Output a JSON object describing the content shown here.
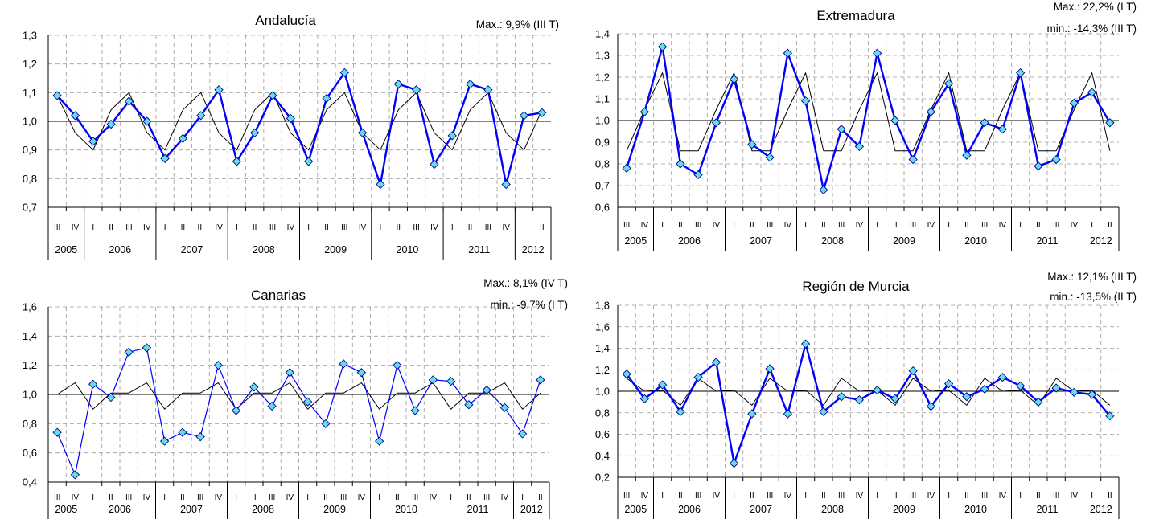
{
  "chart_data": [
    {
      "type": "line",
      "title": "Andalucía",
      "max_note": "Max.: 9,9% (III T)",
      "min_note": "",
      "ylim": [
        0.7,
        1.3
      ],
      "y_ticks": [
        "0,7",
        "0,8",
        "0,9",
        "1,0",
        "1,1",
        "1,2",
        "1,3"
      ],
      "reference_line": 1.0,
      "quarter_labels": [
        "III",
        "IV",
        "I",
        "II",
        "III",
        "IV",
        "I",
        "II",
        "III",
        "IV",
        "I",
        "II",
        "III",
        "IV",
        "I",
        "II",
        "III",
        "IV",
        "I",
        "II",
        "III",
        "IV",
        "I",
        "II",
        "III",
        "IV",
        "I",
        "II"
      ],
      "years": [
        {
          "label": "2005",
          "quarters": 2
        },
        {
          "label": "2006",
          "quarters": 4
        },
        {
          "label": "2007",
          "quarters": 4
        },
        {
          "label": "2008",
          "quarters": 4
        },
        {
          "label": "2009",
          "quarters": 4
        },
        {
          "label": "2010",
          "quarters": 4
        },
        {
          "label": "2011",
          "quarters": 4
        },
        {
          "label": "2012",
          "quarters": 2
        }
      ],
      "series": [
        {
          "color": "#0000ff",
          "marker": "diamond",
          "marker_fill": "#66ddee",
          "values": [
            1.09,
            1.02,
            0.93,
            0.99,
            1.07,
            1.0,
            0.87,
            0.94,
            1.02,
            1.11,
            0.86,
            0.96,
            1.09,
            1.01,
            0.86,
            1.08,
            1.17,
            0.96,
            0.78,
            1.13,
            1.11,
            0.85,
            0.95,
            1.13,
            1.11,
            0.78,
            1.02,
            1.03
          ]
        },
        {
          "color": "#000000",
          "marker": "none",
          "values": [
            1.09,
            0.96,
            0.9,
            1.04,
            1.1,
            0.96,
            0.9,
            1.04,
            1.1,
            0.96,
            0.9,
            1.04,
            1.1,
            0.96,
            0.9,
            1.04,
            1.1,
            0.96,
            0.9,
            1.04,
            1.1,
            0.96,
            0.9,
            1.04,
            1.1,
            0.96,
            0.9,
            1.04
          ]
        }
      ]
    },
    {
      "type": "line",
      "title": "Extremadura",
      "max_note": "Max.: 22,2% (I T)",
      "min_note": "min.: -14,3% (III T)",
      "ylim": [
        0.6,
        1.4
      ],
      "y_ticks": [
        "0,6",
        "0,7",
        "0,8",
        "0,9",
        "1,0",
        "1,1",
        "1,2",
        "1,3",
        "1,4"
      ],
      "reference_line": 1.0,
      "quarter_labels": [
        "III",
        "IV",
        "I",
        "II",
        "III",
        "IV",
        "I",
        "II",
        "III",
        "IV",
        "I",
        "II",
        "III",
        "IV",
        "I",
        "II",
        "III",
        "IV",
        "I",
        "II",
        "III",
        "IV",
        "I",
        "II",
        "III",
        "IV",
        "I",
        "II"
      ],
      "years": [
        {
          "label": "2005",
          "quarters": 2
        },
        {
          "label": "2006",
          "quarters": 4
        },
        {
          "label": "2007",
          "quarters": 4
        },
        {
          "label": "2008",
          "quarters": 4
        },
        {
          "label": "2009",
          "quarters": 4
        },
        {
          "label": "2010",
          "quarters": 4
        },
        {
          "label": "2011",
          "quarters": 4
        },
        {
          "label": "2012",
          "quarters": 2
        }
      ],
      "series": [
        {
          "color": "#0000ff",
          "marker": "diamond",
          "marker_fill": "#66ddee",
          "values": [
            0.78,
            1.04,
            1.34,
            0.8,
            0.75,
            0.99,
            1.19,
            0.89,
            0.83,
            1.31,
            1.09,
            0.68,
            0.96,
            0.88,
            1.31,
            1.0,
            0.82,
            1.04,
            1.17,
            0.84,
            0.99,
            0.96,
            1.22,
            0.79,
            0.82,
            1.08,
            1.13,
            0.99
          ]
        },
        {
          "color": "#000000",
          "marker": "none",
          "values": [
            0.86,
            1.05,
            1.22,
            0.86,
            0.86,
            1.05,
            1.22,
            0.86,
            0.86,
            1.05,
            1.22,
            0.86,
            0.86,
            1.05,
            1.22,
            0.86,
            0.86,
            1.05,
            1.22,
            0.86,
            0.86,
            1.05,
            1.22,
            0.86,
            0.86,
            1.05,
            1.22,
            0.86
          ]
        }
      ]
    },
    {
      "type": "line",
      "title": "Canarias",
      "max_note": "Max.: 8,1% (IV T)",
      "min_note": "min.: -9,7% (I T)",
      "ylim": [
        0.4,
        1.6
      ],
      "y_ticks": [
        "0,4",
        "0,6",
        "0,8",
        "1,0",
        "1,2",
        "1,4",
        "1,6"
      ],
      "reference_line": 1.0,
      "quarter_labels": [
        "III",
        "IV",
        "I",
        "II",
        "III",
        "IV",
        "I",
        "II",
        "III",
        "IV",
        "I",
        "II",
        "III",
        "IV",
        "I",
        "II",
        "III",
        "IV",
        "I",
        "II",
        "III",
        "IV",
        "I",
        "II",
        "III",
        "IV",
        "I",
        "II"
      ],
      "years": [
        {
          "label": "2005",
          "quarters": 2
        },
        {
          "label": "2006",
          "quarters": 4
        },
        {
          "label": "2007",
          "quarters": 4
        },
        {
          "label": "2008",
          "quarters": 4
        },
        {
          "label": "2009",
          "quarters": 4
        },
        {
          "label": "2010",
          "quarters": 4
        },
        {
          "label": "2011",
          "quarters": 4
        },
        {
          "label": "2012",
          "quarters": 2
        }
      ],
      "series": [
        {
          "color": "#0000ff",
          "marker": "diamond",
          "marker_fill": "#66ddee",
          "values": [
            0.74,
            0.45,
            1.07,
            0.98,
            1.29,
            1.32,
            0.68,
            0.74,
            0.71,
            1.2,
            0.89,
            1.05,
            0.92,
            1.15,
            0.95,
            0.8,
            1.21,
            1.15,
            0.68,
            1.2,
            0.89,
            1.1,
            1.09,
            0.93,
            1.03,
            0.91,
            0.73,
            1.1
          ]
        },
        {
          "color": "#000000",
          "marker": "none",
          "values": [
            1.0,
            1.08,
            0.9,
            1.01,
            1.01,
            1.08,
            0.9,
            1.01,
            1.01,
            1.08,
            0.9,
            1.01,
            1.01,
            1.08,
            0.9,
            1.01,
            1.01,
            1.08,
            0.9,
            1.01,
            1.01,
            1.08,
            0.9,
            1.01,
            1.01,
            1.08,
            0.9,
            1.01
          ]
        }
      ]
    },
    {
      "type": "line",
      "title": "Región de Murcia",
      "max_note": "Max.: 12,1% (III T)",
      "min_note": "min.: -13,5% (II T)",
      "ylim": [
        0.2,
        1.8
      ],
      "y_ticks": [
        "0,2",
        "0,4",
        "0,6",
        "0,8",
        "1,0",
        "1,2",
        "1,4",
        "1,6",
        "1,8"
      ],
      "reference_line": 1.0,
      "quarter_labels": [
        "III",
        "IV",
        "I",
        "II",
        "III",
        "IV",
        "I",
        "II",
        "III",
        "IV",
        "I",
        "II",
        "III",
        "IV",
        "I",
        "II",
        "III",
        "IV",
        "I",
        "II",
        "III",
        "IV",
        "I",
        "II",
        "III",
        "IV",
        "I",
        "II"
      ],
      "years": [
        {
          "label": "2005",
          "quarters": 2
        },
        {
          "label": "2006",
          "quarters": 4
        },
        {
          "label": "2007",
          "quarters": 4
        },
        {
          "label": "2008",
          "quarters": 4
        },
        {
          "label": "2009",
          "quarters": 4
        },
        {
          "label": "2010",
          "quarters": 4
        },
        {
          "label": "2011",
          "quarters": 4
        },
        {
          "label": "2012",
          "quarters": 2
        }
      ],
      "series": [
        {
          "color": "#0000ff",
          "marker": "diamond",
          "marker_fill": "#66ddee",
          "values": [
            1.16,
            0.93,
            1.06,
            0.81,
            1.13,
            1.27,
            0.33,
            0.79,
            1.21,
            0.79,
            1.44,
            0.81,
            0.95,
            0.92,
            1.01,
            0.93,
            1.19,
            0.86,
            1.07,
            0.95,
            1.02,
            1.13,
            1.05,
            0.9,
            1.03,
            0.99,
            0.97,
            0.77
          ]
        },
        {
          "color": "#000000",
          "marker": "none",
          "values": [
            1.12,
            1.0,
            1.01,
            0.87,
            1.12,
            1.0,
            1.01,
            0.87,
            1.12,
            1.0,
            1.01,
            0.87,
            1.12,
            1.0,
            1.01,
            0.87,
            1.12,
            1.0,
            1.01,
            0.87,
            1.12,
            1.0,
            1.01,
            0.87,
            1.12,
            1.0,
            1.01,
            0.87
          ]
        }
      ]
    }
  ]
}
